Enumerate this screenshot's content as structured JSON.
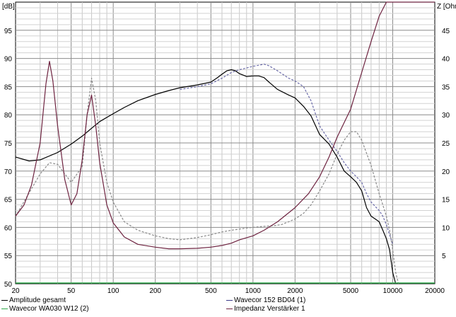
{
  "chart_data": {
    "type": "line",
    "x_scale": "log",
    "xlim": [
      20,
      20000
    ],
    "ylim_left": [
      50,
      100
    ],
    "ylim_right": [
      0,
      50
    ],
    "left_axis_unit": "[dB]",
    "right_axis_unit": "Z [Ohm",
    "x_tick_labels": [
      "20",
      "50",
      "100",
      "200",
      "500",
      "1000",
      "2000",
      "5000",
      "10000",
      "20000"
    ],
    "x_tick_values": [
      20,
      50,
      100,
      200,
      500,
      1000,
      2000,
      5000,
      10000,
      20000
    ],
    "y_left_ticks": [
      50,
      55,
      60,
      65,
      70,
      75,
      80,
      85,
      90,
      95
    ],
    "y_right_ticks": [
      5,
      10,
      15,
      20,
      25,
      30,
      35,
      40,
      45
    ],
    "grid": true,
    "legend_position": "bottom",
    "series": [
      {
        "name": "Amplitude gesamt",
        "axis": "left",
        "color": "#000000",
        "style": "solid",
        "x": [
          20,
          25,
          30,
          40,
          50,
          60,
          70,
          80,
          100,
          120,
          150,
          200,
          250,
          300,
          400,
          500,
          550,
          600,
          650,
          700,
          750,
          800,
          900,
          1000,
          1100,
          1200,
          1300,
          1500,
          1800,
          2000,
          2300,
          2600,
          3000,
          3500,
          4000,
          4500,
          5000,
          5500,
          6000,
          6500,
          7000,
          7500,
          8000,
          8500,
          9000,
          9500,
          10000,
          10500
        ],
        "y": [
          72.5,
          71.8,
          72.0,
          73.3,
          74.8,
          76.2,
          77.6,
          78.8,
          80.2,
          81.3,
          82.5,
          83.6,
          84.3,
          84.8,
          85.3,
          85.8,
          86.5,
          87.2,
          87.8,
          88.0,
          87.8,
          87.3,
          86.8,
          86.9,
          86.9,
          86.6,
          85.8,
          84.5,
          83.5,
          83.0,
          81.5,
          79.8,
          76.5,
          74.8,
          72.5,
          70.0,
          69.0,
          68.0,
          66.5,
          63.5,
          62.0,
          61.5,
          61.0,
          59.5,
          58.0,
          56.0,
          52.0,
          50.0
        ]
      },
      {
        "name": "Wavecor WA030 W12 (2)",
        "axis": "left",
        "color": "#8a8a8a",
        "style": "dashed",
        "x": [
          20,
          30,
          35,
          40,
          50,
          60,
          65,
          70,
          75,
          80,
          90,
          100,
          120,
          150,
          200,
          250,
          300,
          400,
          500,
          600,
          700,
          800,
          900,
          1000,
          1200,
          1400,
          1600,
          1800,
          2000,
          2300,
          2600,
          3000,
          3500,
          4000,
          4500,
          5000,
          5500,
          6000,
          7000,
          8000,
          8500,
          9000,
          9500,
          10000,
          10500,
          11000
        ],
        "y": [
          62.0,
          69.5,
          71.5,
          71.2,
          68.0,
          70.8,
          80.0,
          86.5,
          82.5,
          75.0,
          68.0,
          64.5,
          61.0,
          59.5,
          58.5,
          58.0,
          57.8,
          58.2,
          58.7,
          59.2,
          59.5,
          59.7,
          59.9,
          60.0,
          60.2,
          60.3,
          60.5,
          61.0,
          61.5,
          62.5,
          64.0,
          66.5,
          69.5,
          73.0,
          75.5,
          77.0,
          77.0,
          75.5,
          71.0,
          66.0,
          64.0,
          62.0,
          59.5,
          56.0,
          52.0,
          50.0
        ]
      },
      {
        "name": "Wavecor 152 BD04 (1)",
        "axis": "left",
        "color": "#6a6aa8",
        "style": "dashed",
        "x": [
          300,
          400,
          500,
          600,
          700,
          800,
          900,
          1000,
          1100,
          1200,
          1300,
          1500,
          1800,
          2000,
          2300,
          2600,
          3000,
          3500,
          4000,
          4500,
          5000,
          5500,
          6000,
          6500,
          7000,
          8000,
          8500,
          9000,
          10000
        ],
        "y": [
          84.5,
          85.0,
          85.5,
          86.5,
          87.5,
          88.0,
          88.3,
          88.6,
          88.8,
          89.0,
          88.7,
          87.8,
          86.5,
          86.0,
          85.0,
          82.5,
          78.0,
          75.5,
          73.5,
          71.5,
          70.0,
          69.0,
          68.0,
          66.0,
          64.5,
          63.0,
          62.0,
          60.5,
          57.0
        ]
      },
      {
        "name": "Impedanz Verstärker 1",
        "axis": "right",
        "color": "#6e2340",
        "style": "solid",
        "x": [
          20,
          23,
          26,
          30,
          33,
          35,
          37,
          40,
          45,
          50,
          55,
          60,
          65,
          70,
          75,
          80,
          90,
          100,
          120,
          150,
          200,
          250,
          300,
          400,
          500,
          600,
          700,
          800,
          1000,
          1200,
          1500,
          2000,
          2500,
          3000,
          3500,
          4000,
          5000,
          6000,
          7000,
          8000,
          9000,
          10000,
          20000
        ],
        "y": [
          12.0,
          14.0,
          17.5,
          25.0,
          35.5,
          39.5,
          36.0,
          28.0,
          18.5,
          14.0,
          16.0,
          22.0,
          30.0,
          33.5,
          28.0,
          21.5,
          14.0,
          10.8,
          8.3,
          7.0,
          6.5,
          6.2,
          6.2,
          6.3,
          6.5,
          6.8,
          7.2,
          7.8,
          8.5,
          9.5,
          11.0,
          13.5,
          16.0,
          19.0,
          22.5,
          26.0,
          31.0,
          37.5,
          43.0,
          47.5,
          50.0,
          50.0,
          50.0
        ]
      }
    ]
  }
}
